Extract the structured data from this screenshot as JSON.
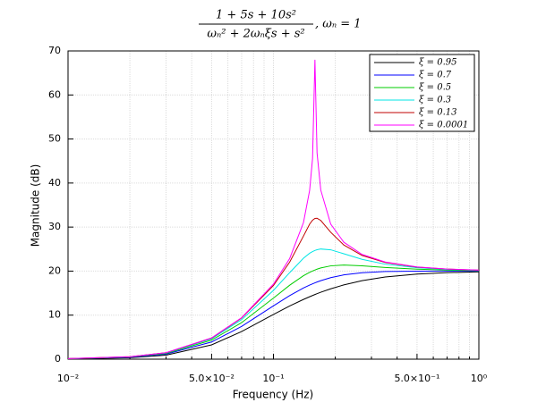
{
  "chart_data": {
    "type": "line",
    "title": {
      "numerator": "1 + 5s + 10s²",
      "denominator": "ωₙ² + 2ωₙξs + s²",
      "suffix": ",    ωₙ = 1"
    },
    "x_label": "Frequency (Hz)",
    "y_label": "Magnitude (dB)",
    "log_x": true,
    "grid": true,
    "legend": "upper right",
    "xlim": [
      0.01,
      1
    ],
    "ylim": [
      0,
      70
    ],
    "xticks": [
      {
        "value": 0.01,
        "label": "10⁻²"
      },
      {
        "value": 0.05,
        "label": "5.0×10⁻²"
      },
      {
        "value": 0.1,
        "label": "10⁻¹"
      },
      {
        "value": 0.5,
        "label": "5.0×10⁻¹"
      },
      {
        "value": 1,
        "label": "10⁰"
      }
    ],
    "xminorticks": [
      0.02,
      0.03,
      0.04,
      0.06,
      0.07,
      0.08,
      0.09,
      0.2,
      0.3,
      0.4,
      0.6,
      0.7,
      0.8,
      0.9
    ],
    "yticks": [
      0,
      10,
      20,
      30,
      40,
      50,
      60,
      70
    ],
    "x": [
      0.01,
      0.02,
      0.03,
      0.05,
      0.07,
      0.1,
      0.12,
      0.14,
      0.15,
      0.155,
      0.1592,
      0.163,
      0.17,
      0.19,
      0.22,
      0.27,
      0.35,
      0.5,
      0.7,
      1
    ],
    "series": [
      {
        "name": "ξ = 0.95",
        "color": "#000000",
        "values": [
          0.06,
          0.32,
          0.91,
          3.25,
          6.27,
          10.15,
          12.08,
          13.57,
          14.18,
          14.46,
          14.68,
          14.87,
          15.2,
          15.98,
          16.87,
          17.83,
          18.66,
          19.33,
          19.65,
          19.83
        ]
      },
      {
        "name": "ξ = 0.7",
        "color": "#0000ff",
        "values": [
          0.09,
          0.43,
          1.15,
          3.9,
          7.44,
          12.12,
          14.44,
          16.16,
          16.82,
          17.11,
          17.33,
          17.52,
          17.83,
          18.51,
          19.14,
          19.64,
          19.9,
          19.99,
          20.01,
          20.01
        ]
      },
      {
        "name": "ξ = 0.5",
        "color": "#00cc00",
        "values": [
          0.11,
          0.5,
          1.3,
          4.33,
          8.3,
          13.87,
          16.8,
          18.95,
          19.71,
          20.03,
          20.25,
          20.44,
          20.72,
          21.19,
          21.37,
          21.2,
          20.82,
          20.44,
          20.23,
          20.11
        ]
      },
      {
        "name": "ξ = 0.3",
        "color": "#00e5e5",
        "values": [
          0.12,
          0.54,
          1.41,
          4.64,
          8.99,
          15.62,
          19.66,
          22.93,
          24.05,
          24.44,
          24.69,
          24.86,
          25.02,
          24.84,
          23.94,
          22.67,
          21.57,
          20.76,
          20.38,
          20.19
        ]
      },
      {
        "name": "ξ = 0.13",
        "color": "#c00000",
        "values": [
          0.13,
          0.56,
          1.46,
          4.79,
          9.35,
          16.74,
          22.07,
          27.96,
          30.66,
          31.56,
          31.95,
          32.0,
          31.5,
          28.82,
          25.93,
          23.56,
          21.96,
          20.91,
          20.46,
          20.22
        ]
      },
      {
        "name": "ξ = 0.0001",
        "color": "#ff00ff",
        "values": [
          0.13,
          0.57,
          1.47,
          4.83,
          9.43,
          17.05,
          22.88,
          31.02,
          38.3,
          45.57,
          68,
          46.87,
          38.38,
          30.68,
          26.56,
          23.79,
          22.06,
          20.95,
          20.47,
          20.23
        ]
      }
    ]
  }
}
